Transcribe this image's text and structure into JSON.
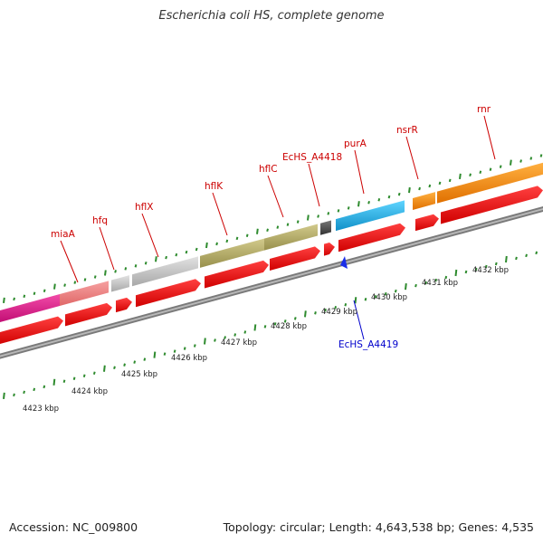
{
  "title": "Escherichia coli HS, complete genome",
  "footer": {
    "accession": "Accession: NC_009800",
    "stats": "Topology: circular; Length: 4,643,538 bp; Genes: 4,535"
  },
  "colors": {
    "gene_label": "#cc0000",
    "minus_label": "#0000cc",
    "cds": "#ee0000",
    "backbone": "#888888",
    "tick": "#228b22",
    "pink": "#e8168c",
    "salmon": "#f08080",
    "lightgray": "#c8c8c8",
    "olive": "#b8b070",
    "darkgray": "#555555",
    "cyan": "#22bbee",
    "orange": "#ff8c00"
  },
  "scale": {
    "unit": "kbp",
    "labels": [
      "4423 kbp",
      "4424 kbp",
      "4425 kbp",
      "4426 kbp",
      "4427 kbp",
      "4428 kbp",
      "4429 kbp",
      "4430 kbp",
      "4431 kbp",
      "4432 kbp"
    ]
  },
  "gene_labels": [
    {
      "name": "miaA"
    },
    {
      "name": "hfq"
    },
    {
      "name": "hflX"
    },
    {
      "name": "hflK"
    },
    {
      "name": "hflC"
    },
    {
      "name": "EcHS_A4418"
    },
    {
      "name": "purA"
    },
    {
      "name": "nsrR"
    },
    {
      "name": "rnr"
    }
  ],
  "minus_labels": [
    {
      "name": "EcHS_A4419"
    }
  ]
}
